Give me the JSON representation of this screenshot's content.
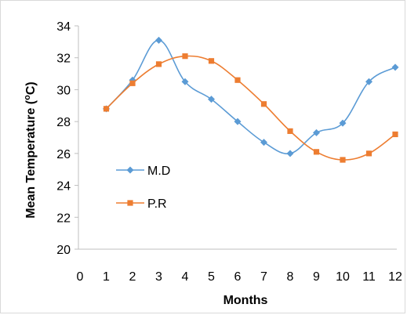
{
  "chart_data": {
    "type": "line",
    "title": "",
    "xlabel": "Months",
    "ylabel_prefix": "Mean Temperature (",
    "ylabel_sup": "o",
    "ylabel_suffix": "C)",
    "xlim": [
      0,
      12
    ],
    "ylim": [
      20,
      34
    ],
    "x_ticks": [
      0,
      1,
      2,
      3,
      4,
      5,
      6,
      7,
      8,
      9,
      10,
      11,
      12
    ],
    "y_ticks": [
      20,
      22,
      24,
      26,
      28,
      30,
      32,
      34
    ],
    "grid": false,
    "smooth": true,
    "legend_position": "left-middle",
    "series": [
      {
        "name": "M.D",
        "color": "#5B9BD5",
        "marker": "diamond",
        "x": [
          1,
          2,
          3,
          4,
          5,
          6,
          7,
          8,
          9,
          10,
          11,
          12
        ],
        "values": [
          28.8,
          30.6,
          33.1,
          30.5,
          29.4,
          28.0,
          26.7,
          26.0,
          27.3,
          27.9,
          30.5,
          31.4
        ]
      },
      {
        "name": "P.R",
        "color": "#ED7D31",
        "marker": "square",
        "x": [
          1,
          2,
          3,
          4,
          5,
          6,
          7,
          8,
          9,
          10,
          11,
          12
        ],
        "values": [
          28.8,
          30.4,
          31.6,
          32.1,
          31.8,
          30.6,
          29.1,
          27.4,
          26.1,
          25.6,
          26.0,
          27.2
        ]
      }
    ]
  }
}
